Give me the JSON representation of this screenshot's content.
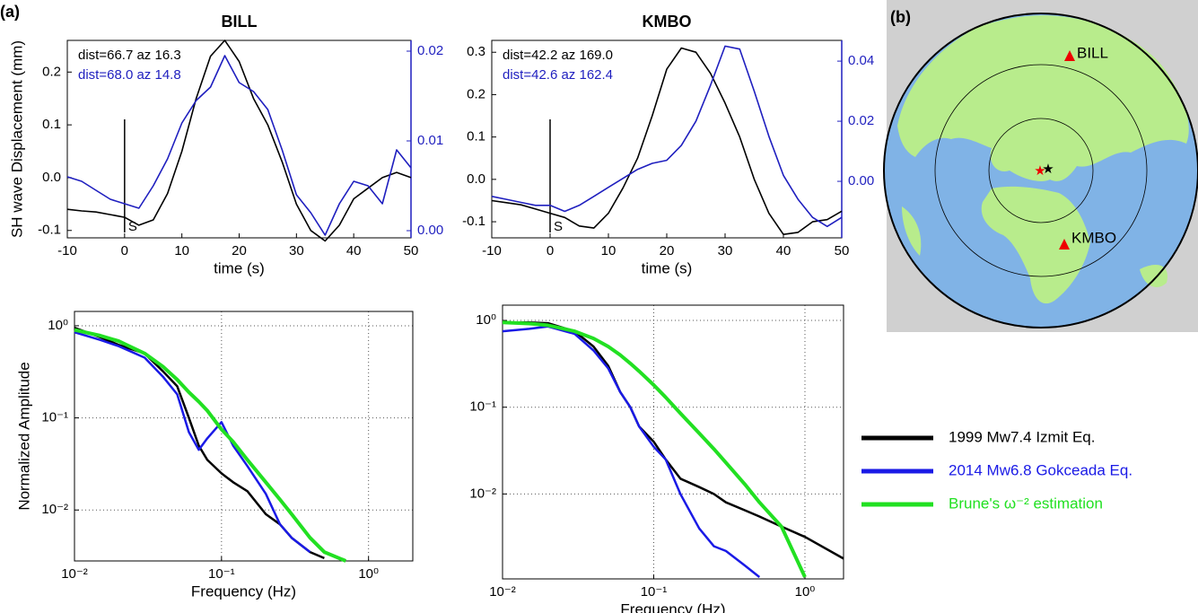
{
  "panel_labels": [
    "(a)",
    "(b)"
  ],
  "map": {
    "stations": [
      "BILL",
      "KMBO"
    ]
  },
  "chart_data": [
    {
      "type": "line",
      "title": "BILL",
      "xlabel": "time (s)",
      "ylabel": "SH wave Displacement (mm)",
      "x": [
        -10,
        -7.5,
        -5,
        -2.5,
        0,
        2.5,
        5,
        7.5,
        10,
        12.5,
        15,
        17.5,
        20,
        22.5,
        25,
        27.5,
        30,
        32.5,
        35,
        37.5,
        40,
        42.5,
        45,
        47.5,
        50
      ],
      "xlim": [
        -10,
        50
      ],
      "xticks": [
        -10,
        0,
        10,
        20,
        30,
        40,
        50
      ],
      "ylim": [
        -0.114,
        0.26
      ],
      "yticks": [
        -0.1,
        {
          "value": 0,
          "label": "0.0"
        },
        0.1,
        0.2
      ],
      "y2lim": [
        -0.0008,
        0.0212
      ],
      "y2ticks": [
        {
          "value": 0,
          "label": "0.00"
        },
        0.01,
        0.02
      ],
      "y2color": "#1f1fbf",
      "annotations": [
        {
          "text": "dist=66.7 az 16.3",
          "color": "#000000"
        },
        {
          "text": "dist=68.0 az 14.8",
          "color": "#1f1fbf"
        }
      ],
      "phase": {
        "label": "S",
        "x": 0
      },
      "series": [
        {
          "color": "#000000",
          "values": [
            -0.06,
            -0.063,
            -0.065,
            -0.07,
            -0.075,
            -0.09,
            -0.08,
            -0.03,
            0.05,
            0.15,
            0.23,
            0.26,
            0.22,
            0.15,
            0.1,
            0.03,
            -0.05,
            -0.1,
            -0.12,
            -0.09,
            -0.04,
            -0.02,
            0.0,
            0.01,
            0.0
          ]
        },
        {
          "color": "#1f1fbf",
          "axis": "y2",
          "values": [
            0.006,
            0.0055,
            0.0045,
            0.0035,
            0.003,
            0.0025,
            0.005,
            0.008,
            0.012,
            0.0145,
            0.016,
            0.0195,
            0.0165,
            0.0155,
            0.0135,
            0.009,
            0.004,
            0.002,
            -0.0005,
            0.003,
            0.0055,
            0.005,
            0.003,
            0.009,
            0.007
          ]
        }
      ]
    },
    {
      "type": "line",
      "title": "KMBO",
      "xlabel": "time (s)",
      "x": [
        -10,
        -7.5,
        -5,
        -2.5,
        0,
        2.5,
        5,
        7.5,
        10,
        12.5,
        15,
        17.5,
        20,
        22.5,
        25,
        27.5,
        30,
        32.5,
        35,
        37.5,
        40,
        42.5,
        45,
        47.5,
        50
      ],
      "xlim": [
        -10,
        50
      ],
      "xticks": [
        -10,
        0,
        10,
        20,
        30,
        40,
        50
      ],
      "ylim": [
        -0.138,
        0.328
      ],
      "yticks": [
        -0.1,
        {
          "value": 0,
          "label": "0.0"
        },
        0.1,
        0.2,
        0.3
      ],
      "y2lim": [
        -0.0188,
        0.0469
      ],
      "y2ticks": [
        {
          "value": 0,
          "label": "0.00"
        },
        0.02,
        0.04
      ],
      "y2color": "#1f1fbf",
      "annotations": [
        {
          "text": "dist=42.2 az 169.0",
          "color": "#000000"
        },
        {
          "text": "dist=42.6 az 162.4",
          "color": "#1f1fbf"
        }
      ],
      "phase": {
        "label": "S",
        "x": 0
      },
      "series": [
        {
          "color": "#000000",
          "values": [
            -0.05,
            -0.055,
            -0.06,
            -0.07,
            -0.08,
            -0.09,
            -0.11,
            -0.115,
            -0.08,
            -0.02,
            0.05,
            0.15,
            0.26,
            0.31,
            0.3,
            0.25,
            0.18,
            0.1,
            0.0,
            -0.08,
            -0.13,
            -0.125,
            -0.1,
            -0.095,
            -0.075
          ]
        },
        {
          "color": "#1f1fbf",
          "axis": "y2",
          "values": [
            -0.005,
            -0.006,
            -0.007,
            -0.008,
            -0.008,
            -0.01,
            -0.008,
            -0.005,
            -0.002,
            0.001,
            0.004,
            0.006,
            0.007,
            0.012,
            0.02,
            0.032,
            0.045,
            0.044,
            0.03,
            0.015,
            0.002,
            -0.006,
            -0.012,
            -0.015,
            -0.012
          ]
        }
      ]
    },
    {
      "type": "line",
      "xlabel": "Frequency (Hz)",
      "ylabel": "Normalized Amplitude",
      "xscale": "log",
      "yscale": "log",
      "grid": true,
      "x": [
        0.01,
        0.015,
        0.02,
        0.03,
        0.04,
        0.05,
        0.06,
        0.07,
        0.08,
        0.1,
        0.12,
        0.15,
        0.2,
        0.25,
        0.3,
        0.4,
        0.5,
        0.7
      ],
      "xlim": [
        0.01,
        2
      ],
      "xticks": [
        {
          "value": 0.01,
          "label": "10⁻²"
        },
        {
          "value": 0.1,
          "label": "10⁻¹"
        },
        {
          "value": 1,
          "label": "10⁰"
        }
      ],
      "ylim": [
        0.0028,
        1.43
      ],
      "yticks": [
        {
          "value": 0.01,
          "label": "10⁻²"
        },
        {
          "value": 0.1,
          "label": "10⁻¹"
        },
        {
          "value": 1,
          "label": "10⁰"
        }
      ],
      "series": [
        {
          "name": "1999 Mw7.4 Izmit Eq.",
          "color": "#000000",
          "values": [
            0.95,
            0.75,
            0.62,
            0.5,
            0.32,
            0.22,
            0.1,
            0.05,
            0.035,
            0.025,
            0.02,
            0.016,
            0.009,
            0.007,
            0.005,
            0.0035,
            0.003,
            null
          ]
        },
        {
          "name": "2014 Mw6.8 Gokceada Eq.",
          "color": "#1a1ae6",
          "values": [
            0.85,
            0.7,
            0.6,
            0.45,
            0.28,
            0.18,
            0.07,
            0.045,
            0.06,
            0.09,
            0.05,
            0.03,
            0.015,
            0.007,
            0.005,
            0.0035,
            null,
            null
          ]
        },
        {
          "name": "Brune's ω⁻² estimation",
          "color": "#22e022",
          "values": [
            0.9,
            0.78,
            0.68,
            0.5,
            0.36,
            0.26,
            0.19,
            0.15,
            0.12,
            0.075,
            0.055,
            0.035,
            0.02,
            0.013,
            0.009,
            0.005,
            0.0035,
            0.0028
          ]
        }
      ]
    },
    {
      "type": "line",
      "xlabel": "Frequency (Hz)",
      "xscale": "log",
      "yscale": "log",
      "grid": true,
      "x": [
        0.01,
        0.015,
        0.02,
        0.03,
        0.04,
        0.05,
        0.06,
        0.07,
        0.08,
        0.1,
        0.12,
        0.15,
        0.2,
        0.25,
        0.3,
        0.4,
        0.5,
        0.7,
        1,
        1.8
      ],
      "xlim": [
        0.01,
        1.8
      ],
      "xticks": [
        {
          "value": 0.01,
          "label": "10⁻²"
        },
        {
          "value": 0.1,
          "label": "10⁻¹"
        },
        {
          "value": 1,
          "label": "10⁰"
        }
      ],
      "ylim": [
        0.00105,
        1.5
      ],
      "yticks": [
        {
          "value": 0.01,
          "label": "10⁻²"
        },
        {
          "value": 0.1,
          "label": "10⁻¹"
        },
        {
          "value": 1,
          "label": "10⁰"
        }
      ],
      "series": [
        {
          "color": "#000000",
          "values": [
            0.95,
            0.95,
            0.93,
            0.75,
            0.5,
            0.3,
            0.15,
            0.1,
            0.06,
            0.04,
            0.025,
            0.015,
            0.012,
            0.01,
            0.008,
            0.0065,
            0.0055,
            0.0042,
            0.0032,
            0.0018
          ]
        },
        {
          "color": "#1a1ae6",
          "values": [
            0.75,
            0.8,
            0.85,
            0.7,
            0.45,
            0.28,
            0.15,
            0.1,
            0.06,
            0.035,
            0.025,
            0.01,
            0.004,
            0.0025,
            0.0022,
            0.0015,
            0.0011,
            null,
            null,
            null
          ]
        },
        {
          "color": "#22e022",
          "values": [
            0.95,
            0.92,
            0.88,
            0.75,
            0.62,
            0.5,
            0.4,
            0.32,
            0.26,
            0.18,
            0.13,
            0.085,
            0.05,
            0.033,
            0.023,
            0.013,
            0.008,
            0.0042,
            0.0011,
            null
          ]
        }
      ]
    }
  ]
}
